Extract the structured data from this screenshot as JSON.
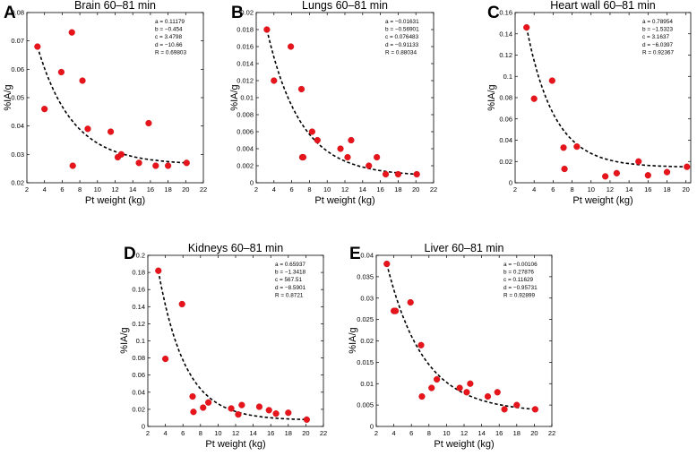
{
  "chart_data": [
    {
      "type": "scatter",
      "panel": "A",
      "title": "Brain 60–81 min",
      "xlabel": "Pt weight (kg)",
      "ylabel": "%IA/g",
      "xlim": [
        2,
        22
      ],
      "ylim": [
        0.02,
        0.08
      ],
      "xticks": [
        "2",
        "4",
        "6",
        "8",
        "10",
        "12",
        "14",
        "16",
        "18",
        "20",
        "22"
      ],
      "yticks": [
        "0.02",
        "0.03",
        "0.04",
        "0.05",
        "0.06",
        "0.07",
        "0.08"
      ],
      "params": [
        "a = 0.11179",
        "b = −0.454",
        "c = 3.4798",
        "d = −10.66",
        "R = 0.69803"
      ],
      "fit": {
        "a": 0.11179,
        "b": -0.454,
        "c": 3.4798,
        "d": -10.66
      },
      "x": [
        3.2,
        4.0,
        5.9,
        7.1,
        7.2,
        8.3,
        8.9,
        11.5,
        12.3,
        12.7,
        14.7,
        15.8,
        16.6,
        18.0,
        20.1
      ],
      "y": [
        0.068,
        0.046,
        0.059,
        0.073,
        0.026,
        0.056,
        0.039,
        0.038,
        0.029,
        0.03,
        0.027,
        0.041,
        0.026,
        0.026,
        0.027
      ]
    },
    {
      "type": "scatter",
      "panel": "B",
      "title": "Lungs 60–81 min",
      "xlabel": "Pt weight (kg)",
      "ylabel": "%IA/g",
      "xlim": [
        2,
        22
      ],
      "ylim": [
        0,
        0.02
      ],
      "xticks": [
        "2",
        "4",
        "6",
        "8",
        "10",
        "12",
        "14",
        "16",
        "18",
        "20",
        "22"
      ],
      "yticks": [
        "0",
        "0.002",
        "0.004",
        "0.006",
        "0.008",
        "0.01",
        "0.012",
        "0.014",
        "0.016",
        "0.018",
        "0.02"
      ],
      "params": [
        "a = −0.01631",
        "b = −0.56901",
        "c = 0.076483",
        "d = −0.91133",
        "R = 0.88034"
      ],
      "fit": {
        "a": -0.01631,
        "b": -0.56901,
        "c": 0.076483,
        "d": -0.91133
      },
      "x": [
        3.2,
        4.0,
        5.9,
        7.1,
        7.2,
        7.3,
        8.3,
        8.9,
        11.5,
        12.3,
        12.7,
        14.7,
        15.6,
        16.6,
        18.0,
        20.1
      ],
      "y": [
        0.018,
        0.012,
        0.016,
        0.011,
        0.003,
        0.003,
        0.006,
        0.005,
        0.004,
        0.003,
        0.005,
        0.002,
        0.003,
        0.001,
        0.001,
        0.001
      ]
    },
    {
      "type": "scatter",
      "panel": "C",
      "title": "Heart wall 60–81 min",
      "xlabel": "Pt weight (kg)",
      "ylabel": "%IA/g",
      "xlim": [
        2,
        20.5
      ],
      "ylim": [
        0,
        0.16
      ],
      "xticks": [
        "2",
        "4",
        "6",
        "8",
        "10",
        "12",
        "14",
        "16",
        "18",
        "20"
      ],
      "yticks": [
        "0",
        "0.02",
        "0.04",
        "0.06",
        "0.08",
        "0.1",
        "0.12",
        "0.14",
        "0.16"
      ],
      "params": [
        "a = 0.78954",
        "b = −1.5323",
        "c = 3.1637",
        "d = −6.0397",
        "R = 0.92367"
      ],
      "fit": {
        "a": 0.78954,
        "b": -1.5323,
        "c": 3.1637,
        "d": -6.0397
      },
      "x": [
        3.2,
        4.0,
        5.9,
        7.1,
        7.2,
        8.5,
        11.5,
        12.7,
        15.0,
        16.0,
        18.0,
        20.1
      ],
      "y": [
        0.146,
        0.079,
        0.096,
        0.033,
        0.013,
        0.034,
        0.006,
        0.009,
        0.02,
        0.007,
        0.01,
        0.015
      ]
    },
    {
      "type": "scatter",
      "panel": "D",
      "title": "Kidneys 60–81 min",
      "xlabel": "Pt weight (kg)",
      "ylabel": "%IA/g",
      "xlim": [
        2,
        22
      ],
      "ylim": [
        0,
        0.2
      ],
      "xticks": [
        "2",
        "4",
        "6",
        "8",
        "10",
        "12",
        "14",
        "16",
        "18",
        "20",
        "22"
      ],
      "yticks": [
        "0",
        "0.02",
        "0.04",
        "0.06",
        "0.08",
        "0.1",
        "0.12",
        "0.14",
        "0.16",
        "0.18",
        "0.2"
      ],
      "params": [
        "a = 0.65937",
        "b = −1.3418",
        "c = 567.51",
        "d = −8.5901",
        "R = 0.8721"
      ],
      "fit": {
        "a": 0.65937,
        "b": -1.3418,
        "c": 567.51,
        "d": -8.5901
      },
      "x": [
        3.2,
        4.0,
        5.9,
        7.1,
        7.2,
        8.3,
        8.9,
        11.5,
        12.3,
        12.7,
        14.7,
        15.8,
        16.6,
        18.0,
        20.1
      ],
      "y": [
        0.182,
        0.079,
        0.143,
        0.035,
        0.017,
        0.022,
        0.028,
        0.021,
        0.014,
        0.025,
        0.023,
        0.019,
        0.015,
        0.016,
        0.008
      ]
    },
    {
      "type": "scatter",
      "panel": "E",
      "title": "Liver 60–81 min",
      "xlabel": "Pt weight (kg)",
      "ylabel": "%IA/g",
      "xlim": [
        2,
        22
      ],
      "ylim": [
        0,
        0.04
      ],
      "xticks": [
        "2",
        "4",
        "6",
        "8",
        "10",
        "12",
        "14",
        "16",
        "18",
        "20",
        "22"
      ],
      "yticks": [
        "0",
        "0.005",
        "0.01",
        "0.015",
        "0.02",
        "0.025",
        "0.03",
        "0.035",
        "0.04"
      ],
      "params": [
        "a = −0.00106",
        "b = 0.27876",
        "c = 0.11629",
        "d = −0.95731",
        "R = 0.92899"
      ],
      "fit": {
        "a": -0.00106,
        "b": 0.27876,
        "c": 0.11629,
        "d": -0.95731
      },
      "x": [
        3.2,
        4.0,
        4.2,
        5.9,
        7.1,
        7.2,
        8.3,
        8.9,
        11.5,
        12.3,
        12.7,
        14.7,
        15.8,
        16.6,
        18.0,
        20.1
      ],
      "y": [
        0.038,
        0.027,
        0.027,
        0.029,
        0.019,
        0.007,
        0.009,
        0.011,
        0.009,
        0.008,
        0.01,
        0.007,
        0.008,
        0.004,
        0.005,
        0.004
      ]
    }
  ]
}
